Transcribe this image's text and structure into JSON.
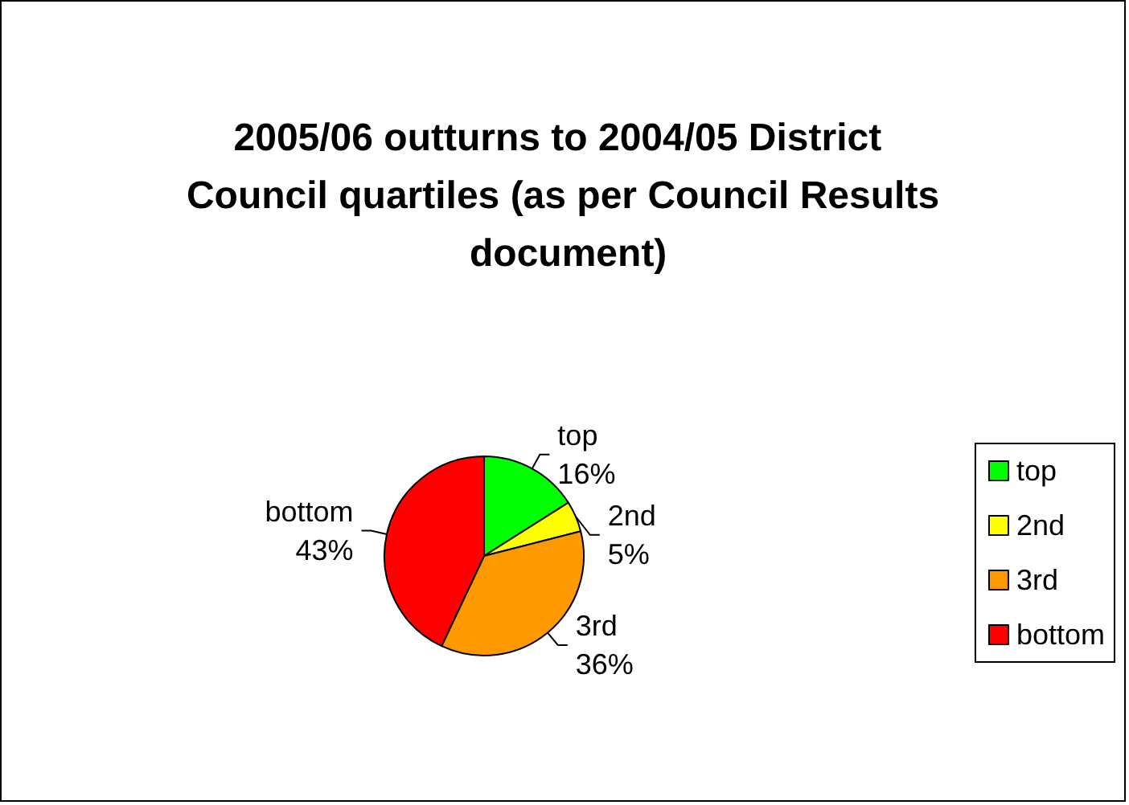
{
  "chart_data": {
    "type": "pie",
    "title": "2005/06 outturns to 2004/05 District Council quartiles (as per Council Results document)",
    "categories": [
      "top",
      "2nd",
      "3rd",
      "bottom"
    ],
    "values": [
      16,
      5,
      36,
      43
    ],
    "colors": [
      "#00ff00",
      "#ffff00",
      "#ff9900",
      "#ff0000"
    ],
    "value_labels": [
      "16%",
      "5%",
      "36%",
      "43%"
    ],
    "legend": "right"
  }
}
